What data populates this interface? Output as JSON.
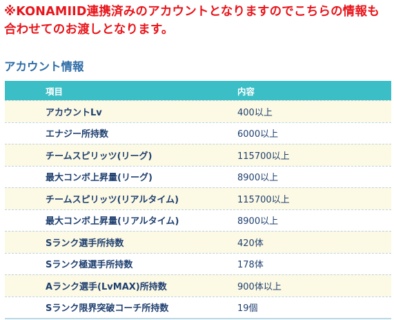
{
  "notice": {
    "line1": "※KONAMIID連携済みのアカウントとなりますのでこちらの情報も",
    "line2": "合わせてのお渡しとなります。"
  },
  "section_title": "アカウント情報",
  "table": {
    "headers": [
      "項目",
      "内容"
    ],
    "rows": [
      {
        "item": "アカウントLv",
        "value": "400以上"
      },
      {
        "item": "エナジー所持数",
        "value": "6000以上"
      },
      {
        "item": "チームスピリッツ(リーグ)",
        "value": "115700以上"
      },
      {
        "item": "最大コンボ上昇量(リーグ)",
        "value": "8900以上"
      },
      {
        "item": "チームスピリッツ(リアルタイム)",
        "value": "115700以上"
      },
      {
        "item": "最大コンボ上昇量(リアルタイム)",
        "value": "8900以上"
      },
      {
        "item": "Sランク選手所持数",
        "value": "420体"
      },
      {
        "item": "Sランク極選手所持数",
        "value": "178体"
      },
      {
        "item": "Aランク選手(LvMAX)所持数",
        "value": "900体以上"
      },
      {
        "item": "Sランク限界突破コーチ所持数",
        "value": "19個"
      }
    ]
  },
  "colors": {
    "notice": "#e8141a",
    "section_title": "#2f6da7",
    "header_bg": "#3bbec5",
    "row_alt_bg": "#fcf9e4",
    "row_text": "#1e3f6f"
  }
}
